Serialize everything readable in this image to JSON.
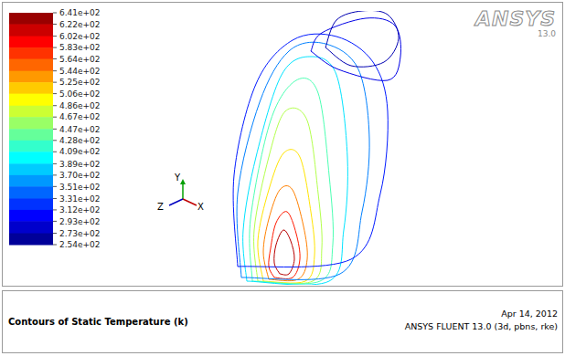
{
  "chart_data": {
    "type": "contour",
    "title": "Contours of Static Temperature (k)",
    "date": "Apr 14, 2012",
    "software": "ANSYS FLUENT 13.0 (3d, pbns, rke)",
    "logo": "ANSYS",
    "logo_version": "13.0",
    "axes_triad": {
      "x": "X",
      "y": "Y",
      "z": "Z"
    },
    "tick_labels": false,
    "xlim": [
      0,
      100
    ],
    "ylim": [
      0,
      150
    ],
    "colorbar": {
      "range": [
        254,
        641
      ],
      "ticks": [
        {
          "value": 641,
          "label": "6.41e+02"
        },
        {
          "value": 622,
          "label": "6.22e+02"
        },
        {
          "value": 602,
          "label": "6.02e+02"
        },
        {
          "value": 583,
          "label": "5.83e+02"
        },
        {
          "value": 564,
          "label": "5.64e+02"
        },
        {
          "value": 544,
          "label": "5.44e+02"
        },
        {
          "value": 525,
          "label": "5.25e+02"
        },
        {
          "value": 506,
          "label": "5.06e+02"
        },
        {
          "value": 486,
          "label": "4.86e+02"
        },
        {
          "value": 467,
          "label": "4.67e+02"
        },
        {
          "value": 447,
          "label": "4.47e+02"
        },
        {
          "value": 428,
          "label": "4.28e+02"
        },
        {
          "value": 409,
          "label": "4.09e+02"
        },
        {
          "value": 389,
          "label": "3.89e+02"
        },
        {
          "value": 370,
          "label": "3.70e+02"
        },
        {
          "value": 351,
          "label": "3.51e+02"
        },
        {
          "value": 331,
          "label": "3.31e+02"
        },
        {
          "value": 312,
          "label": "3.12e+02"
        },
        {
          "value": 293,
          "label": "2.93e+02"
        },
        {
          "value": 273,
          "label": "2.73e+02"
        },
        {
          "value": 254,
          "label": "2.54e+02"
        }
      ]
    },
    "contours": [
      {
        "level": 620,
        "x": [
          33,
          38,
          41,
          39,
          35,
          31,
          30,
          33
        ],
        "y": [
          6,
          6,
          14,
          24,
          30,
          22,
          12,
          6
        ]
      },
      {
        "level": 583,
        "x": [
          30,
          40,
          44,
          42,
          37,
          31,
          28,
          27,
          30
        ],
        "y": [
          4,
          4,
          14,
          28,
          40,
          34,
          20,
          10,
          4
        ]
      },
      {
        "level": 544,
        "x": [
          27,
          43,
          48,
          46,
          40,
          33,
          27,
          24,
          27
        ],
        "y": [
          3,
          3,
          14,
          32,
          52,
          52,
          36,
          18,
          3
        ]
      },
      {
        "level": 506,
        "x": [
          24,
          47,
          52,
          50,
          44,
          35,
          27,
          21,
          24
        ],
        "y": [
          2,
          2,
          16,
          40,
          70,
          72,
          52,
          24,
          2
        ]
      },
      {
        "level": 467,
        "x": [
          21,
          51,
          56,
          54,
          48,
          36,
          27,
          19,
          21
        ],
        "y": [
          2,
          2,
          20,
          50,
          90,
          95,
          70,
          30,
          2
        ]
      },
      {
        "level": 428,
        "x": [
          18,
          55,
          62,
          60,
          54,
          42,
          28,
          17,
          18
        ],
        "y": [
          2,
          2,
          22,
          60,
          105,
          112,
          90,
          36,
          2
        ]
      },
      {
        "level": 389,
        "x": [
          15,
          60,
          68,
          70,
          64,
          50,
          34,
          20,
          13,
          15
        ],
        "y": [
          2,
          2,
          30,
          70,
          115,
          125,
          115,
          70,
          30,
          2
        ]
      },
      {
        "level": 351,
        "x": [
          12,
          66,
          78,
          82,
          76,
          58,
          38,
          22,
          10,
          12
        ],
        "y": [
          4,
          6,
          40,
          80,
          118,
          132,
          128,
          100,
          50,
          4
        ]
      },
      {
        "level": 312,
        "x": [
          10,
          72,
          88,
          92,
          84,
          64,
          40,
          20,
          8,
          10
        ],
        "y": [
          10,
          14,
          50,
          95,
          122,
          136,
          134,
          110,
          60,
          10
        ]
      },
      {
        "level": 293,
        "x": [
          50,
          65,
          92,
          99,
          96,
          80,
          56,
          50
        ],
        "y": [
          128,
          118,
          112,
          125,
          142,
          146,
          138,
          128
        ]
      },
      {
        "level": 273,
        "x": [
          58,
          72,
          90,
          98,
          92,
          78,
          64,
          58
        ],
        "y": [
          130,
          120,
          122,
          135,
          148,
          150,
          145,
          130
        ]
      }
    ]
  }
}
